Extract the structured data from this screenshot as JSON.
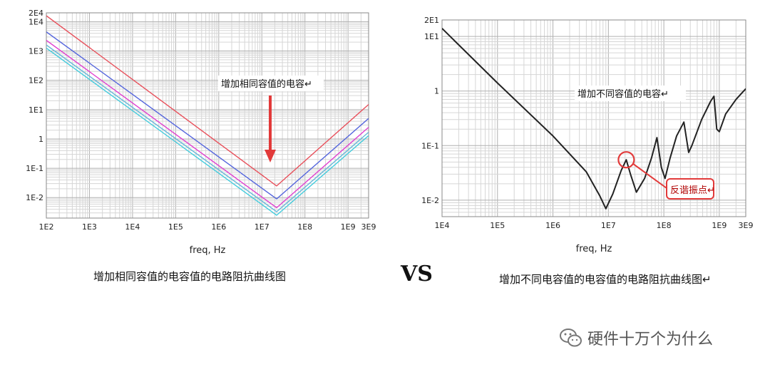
{
  "chart_data": [
    {
      "type": "line",
      "xscale": "log",
      "yscale": "log",
      "xlim": [
        100,
        3000000000
      ],
      "ylim": [
        0.002,
        20000
      ],
      "grid": true,
      "xlabel": "freq, Hz",
      "x_ticks": [
        "1E2",
        "1E3",
        "1E4",
        "1E5",
        "1E6",
        "1E7",
        "1E8",
        "1E9",
        "3E9"
      ],
      "y_ticks": [
        "2E4",
        "1E4",
        "1E3",
        "1E2",
        "1E1",
        "1",
        "1E-1",
        "1E-2"
      ],
      "annotation": "增加相同容值的电容↵",
      "series": [
        {
          "color": "#e8505b",
          "points": [
            [
              100,
              15900
            ],
            [
              22000000,
              0.025
            ],
            [
              3000000000,
              15
            ]
          ]
        },
        {
          "color": "#5566dd",
          "points": [
            [
              100,
              4500
            ],
            [
              22000000,
              0.009
            ],
            [
              3000000000,
              5
            ]
          ]
        },
        {
          "color": "#e040d0",
          "points": [
            [
              100,
              2300
            ],
            [
              22000000,
              0.0045
            ],
            [
              3000000000,
              2.5
            ]
          ]
        },
        {
          "color": "#66b8d8",
          "points": [
            [
              100,
              1600
            ],
            [
              22000000,
              0.0033
            ],
            [
              3000000000,
              1.7
            ]
          ]
        },
        {
          "color": "#44ccdd",
          "points": [
            [
              100,
              1250
            ],
            [
              22000000,
              0.0025
            ],
            [
              3000000000,
              1.3
            ]
          ]
        }
      ]
    },
    {
      "type": "line",
      "xscale": "log",
      "yscale": "log",
      "xlim": [
        10000,
        3000000000
      ],
      "ylim": [
        0.005,
        20
      ],
      "grid": true,
      "xlabel": "freq, Hz",
      "x_ticks": [
        "1E4",
        "1E5",
        "1E6",
        "1E7",
        "1E8",
        "1E9",
        "3E9"
      ],
      "y_ticks": [
        "2E1",
        "1E1",
        "1",
        "1E-1",
        "1E-2"
      ],
      "annotation": "增加不同容值的电容↵",
      "callout": "反谐振点↵",
      "series": [
        {
          "color": "#222222",
          "points": [
            [
              10000,
              14
            ],
            [
              100000,
              1.4
            ],
            [
              1000000,
              0.15
            ],
            [
              4000000,
              0.033
            ],
            [
              7000000,
              0.012
            ],
            [
              9000000,
              0.007
            ],
            [
              12000000,
              0.013
            ],
            [
              17000000,
              0.035
            ],
            [
              21000000,
              0.055
            ],
            [
              25000000,
              0.03
            ],
            [
              32000000,
              0.014
            ],
            [
              45000000,
              0.025
            ],
            [
              60000000,
              0.06
            ],
            [
              75000000,
              0.14
            ],
            [
              90000000,
              0.04
            ],
            [
              105000000,
              0.025
            ],
            [
              130000000,
              0.06
            ],
            [
              170000000,
              0.15
            ],
            [
              230000000,
              0.27
            ],
            [
              280000000,
              0.075
            ],
            [
              320000000,
              0.1
            ],
            [
              480000000,
              0.3
            ],
            [
              700000000,
              0.65
            ],
            [
              800000000,
              0.8
            ],
            [
              900000000,
              0.2
            ],
            [
              1000000000,
              0.18
            ],
            [
              1300000000,
              0.38
            ],
            [
              2000000000,
              0.7
            ],
            [
              3000000000,
              1.1
            ]
          ]
        }
      ]
    }
  ],
  "captions": {
    "left": "增加相同容值的电容值的电路阻抗曲线图",
    "vs": "VS",
    "right": "增加不同电容值的电容值的电路阻抗曲线图↵"
  },
  "watermark": {
    "icon": "wechat-icon",
    "text": "硬件十万个为什么"
  }
}
